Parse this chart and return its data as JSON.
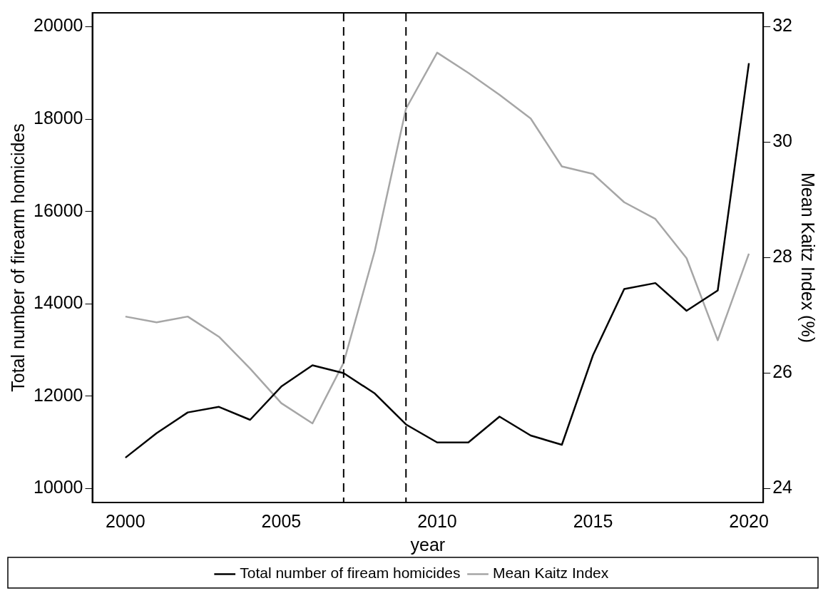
{
  "chart_data": {
    "type": "line",
    "xlabel": "year",
    "ylabel": "Total number of firearm homicides",
    "y2label": "Mean Kaitz Index (%)",
    "x": [
      2000,
      2001,
      2002,
      2003,
      2004,
      2005,
      2006,
      2007,
      2008,
      2009,
      2010,
      2011,
      2012,
      2013,
      2014,
      2015,
      2016,
      2017,
      2018,
      2019,
      2020
    ],
    "series": [
      {
        "name": "Total number of fiream homicides",
        "color": "#000000",
        "values": [
          10670,
          11200,
          11650,
          11770,
          11490,
          12210,
          12670,
          12500,
          12060,
          11390,
          11000,
          11000,
          11560,
          11150,
          10950,
          12890,
          14320,
          14450,
          13850,
          14290,
          19210
        ]
      },
      {
        "name": "Mean Kaitz Index",
        "color": "#a6a6a6",
        "axis": "y2",
        "values": [
          26.98,
          26.88,
          26.98,
          26.63,
          26.08,
          25.48,
          25.13,
          26.18,
          28.12,
          30.58,
          31.55,
          31.2,
          30.82,
          30.41,
          29.58,
          29.45,
          28.96,
          28.67,
          27.99,
          26.57,
          28.07
        ]
      }
    ],
    "xlim": [
      1998.94,
      2020.46
    ],
    "xticks": [
      2000,
      2005,
      2010,
      2015,
      2020
    ],
    "ylim": [
      9700,
      20300
    ],
    "yticks": [
      10000,
      12000,
      14000,
      16000,
      18000,
      20000
    ],
    "y2lim": [
      23.76,
      32.24
    ],
    "y2ticks": [
      24,
      26,
      28,
      30,
      32
    ],
    "ref_lines": [
      {
        "axis": "x",
        "value": 2007,
        "color": "#000000",
        "line_style": "dashed"
      },
      {
        "axis": "x",
        "value": 2009,
        "color": "#000000",
        "line_style": "dashed"
      }
    ],
    "grid": false,
    "legend": "bottom",
    "marker": "none",
    "line_style": "solid"
  }
}
